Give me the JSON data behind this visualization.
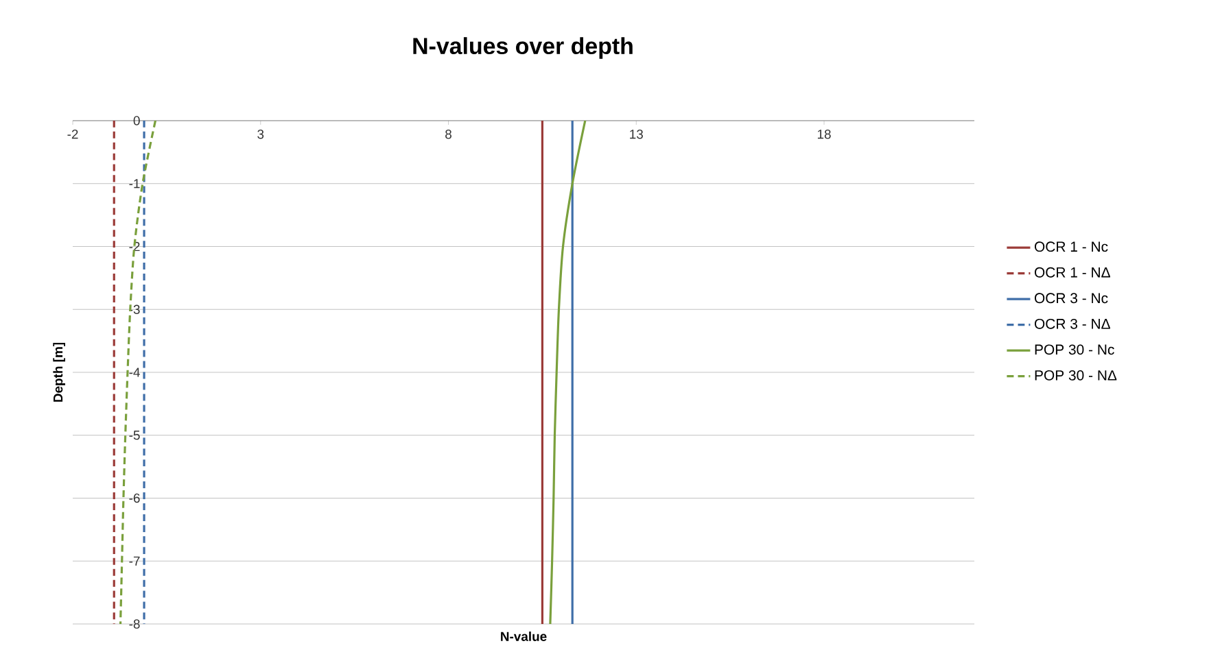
{
  "chart_data": {
    "type": "line",
    "title": "N-values over depth",
    "xlabel": "N-value",
    "ylabel": "Depth [m]",
    "xlim": [
      -2,
      22
    ],
    "xticks": [
      -2,
      3,
      8,
      13,
      18
    ],
    "ylim": [
      -8,
      0
    ],
    "yticks": [
      0,
      -1,
      -2,
      -3,
      -4,
      -5,
      -6,
      -7,
      -8
    ],
    "grid": "y",
    "legend": "right",
    "marker": "none",
    "series": [
      {
        "name": "OCR 1 - Nc",
        "color": "#9b3b38",
        "line_style": "solid",
        "x": [
          10.5,
          10.5
        ],
        "values": [
          0,
          -8
        ]
      },
      {
        "name": "OCR 1 - NΔ",
        "color": "#9b3b38",
        "line_style": "dashed",
        "x": [
          -0.9,
          -0.9
        ],
        "values": [
          0,
          -8
        ]
      },
      {
        "name": "OCR 3 - Nc",
        "color": "#3f6ea8",
        "line_style": "solid",
        "x": [
          11.3,
          11.3
        ],
        "values": [
          0,
          -8
        ]
      },
      {
        "name": "OCR 3 - NΔ",
        "color": "#3f6ea8",
        "line_style": "dashed",
        "x": [
          -0.1,
          -0.1
        ],
        "values": [
          0,
          -8
        ]
      },
      {
        "name": "POP 30 - Nc",
        "color": "#7aa03c",
        "line_style": "solid",
        "x": [
          11.64,
          11.3,
          11.05,
          10.94,
          10.88,
          10.83,
          10.8,
          10.76,
          10.71
        ],
        "values": [
          0,
          -1,
          -2,
          -3,
          -4,
          -5,
          -6,
          -7,
          -8
        ]
      },
      {
        "name": "POP 30 - NΔ",
        "color": "#7aa03c",
        "line_style": "dashed",
        "x": [
          0.2,
          -0.14,
          -0.36,
          -0.47,
          -0.54,
          -0.6,
          -0.65,
          -0.69,
          -0.73
        ],
        "values": [
          0,
          -1,
          -2,
          -3,
          -4,
          -5,
          -6,
          -7,
          -8
        ]
      }
    ]
  }
}
